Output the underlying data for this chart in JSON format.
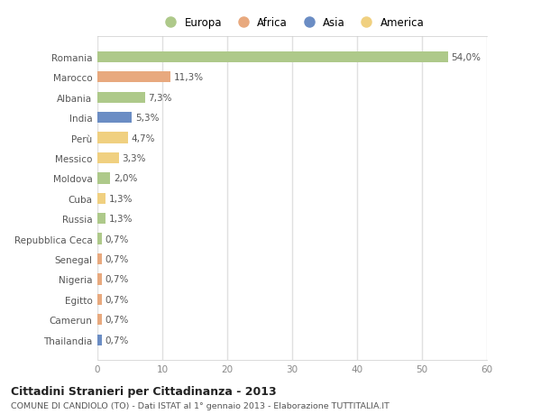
{
  "countries": [
    "Romania",
    "Marocco",
    "Albania",
    "India",
    "Perù",
    "Messico",
    "Moldova",
    "Cuba",
    "Russia",
    "Repubblica Ceca",
    "Senegal",
    "Nigeria",
    "Egitto",
    "Camerun",
    "Thailandia"
  ],
  "values": [
    54.0,
    11.3,
    7.3,
    5.3,
    4.7,
    3.3,
    2.0,
    1.3,
    1.3,
    0.7,
    0.7,
    0.7,
    0.7,
    0.7,
    0.7
  ],
  "labels": [
    "54,0%",
    "11,3%",
    "7,3%",
    "5,3%",
    "4,7%",
    "3,3%",
    "2,0%",
    "1,3%",
    "1,3%",
    "0,7%",
    "0,7%",
    "0,7%",
    "0,7%",
    "0,7%",
    "0,7%"
  ],
  "colors": [
    "#aec98a",
    "#e8a97e",
    "#aec98a",
    "#6b8dc4",
    "#f0d080",
    "#f0d080",
    "#aec98a",
    "#f0d080",
    "#aec98a",
    "#aec98a",
    "#e8a97e",
    "#e8a97e",
    "#e8a97e",
    "#e8a97e",
    "#6b8dc4"
  ],
  "legend_labels": [
    "Europa",
    "Africa",
    "Asia",
    "America"
  ],
  "legend_colors": [
    "#aec98a",
    "#e8a97e",
    "#6b8dc4",
    "#f0d080"
  ],
  "xlim": [
    0,
    60
  ],
  "xticks": [
    0,
    10,
    20,
    30,
    40,
    50,
    60
  ],
  "title": "Cittadini Stranieri per Cittadinanza - 2013",
  "subtitle": "COMUNE DI CANDIOLO (TO) - Dati ISTAT al 1° gennaio 2013 - Elaborazione TUTTITALIA.IT",
  "bg_color": "#ffffff",
  "plot_bg_color": "#ffffff",
  "grid_color": "#e0e0e0",
  "bar_height": 0.55,
  "label_fontsize": 7.5,
  "ytick_fontsize": 7.5,
  "xtick_fontsize": 7.5
}
